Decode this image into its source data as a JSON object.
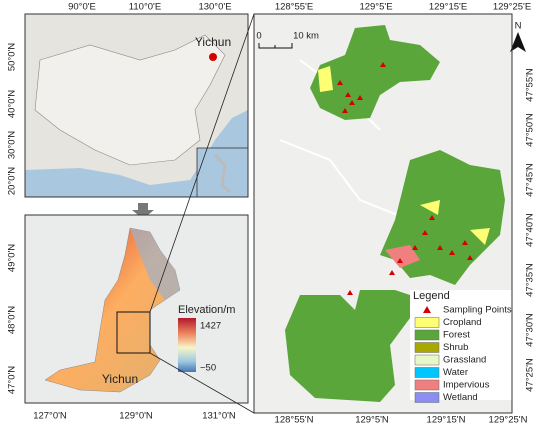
{
  "overview_map": {
    "x_labels": [
      "90°0'E",
      "110°0'E",
      "130°0'E"
    ],
    "y_labels": [
      "50°0'N",
      "40°0'N",
      "30°0'N",
      "20°0'N"
    ],
    "place_label": "Yichun"
  },
  "elevation_map": {
    "x_labels": [
      "127°0'N",
      "129°0'N",
      "131°0'N"
    ],
    "y_labels": [
      "49°0'N",
      "48°0'N",
      "47°0'N"
    ],
    "legend_title": "Elevation/m",
    "max_label": "1427",
    "min_label": "−50",
    "place_label": "Yichun"
  },
  "land_cover_map": {
    "top_labels": [
      "128°55'E",
      "129°5'E",
      "129°15'E",
      "129°25'E"
    ],
    "bottom_labels": [
      "128°55'N",
      "129°5'N",
      "129°15'N",
      "129°25'N"
    ],
    "right_labels": [
      "47°55'N",
      "47°50'N",
      "47°45'N",
      "47°40'N",
      "47°35'N",
      "47°30'N",
      "47°25'N"
    ],
    "scale_bar": {
      "start": "0",
      "end": "10 km"
    },
    "north": "N",
    "legend": {
      "title": "Legend",
      "items": [
        {
          "label": "Sampling Points",
          "color": "#d40000"
        },
        {
          "label": "Cropland",
          "color": "#ffff73"
        },
        {
          "label": "Forest",
          "color": "#5aa63a"
        },
        {
          "label": "Shrub",
          "color": "#a8a800"
        },
        {
          "label": "Grassland",
          "color": "#e8f7c8"
        },
        {
          "label": "Water",
          "color": "#00c5ff"
        },
        {
          "label": "Impervious",
          "color": "#f08080"
        },
        {
          "label": "Wetland",
          "color": "#8c8cf5"
        }
      ]
    }
  }
}
